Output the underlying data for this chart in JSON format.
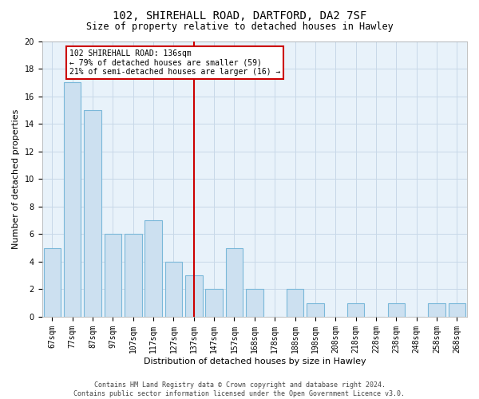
{
  "title": "102, SHIREHALL ROAD, DARTFORD, DA2 7SF",
  "subtitle": "Size of property relative to detached houses in Hawley",
  "xlabel": "Distribution of detached houses by size in Hawley",
  "ylabel": "Number of detached properties",
  "categories": [
    "67sqm",
    "77sqm",
    "87sqm",
    "97sqm",
    "107sqm",
    "117sqm",
    "127sqm",
    "137sqm",
    "147sqm",
    "157sqm",
    "168sqm",
    "178sqm",
    "188sqm",
    "198sqm",
    "208sqm",
    "218sqm",
    "228sqm",
    "238sqm",
    "248sqm",
    "258sqm",
    "268sqm"
  ],
  "values": [
    5,
    17,
    15,
    6,
    6,
    7,
    4,
    3,
    2,
    5,
    2,
    0,
    2,
    1,
    0,
    1,
    0,
    1,
    0,
    1,
    1
  ],
  "bar_color": "#cce0f0",
  "bar_edgecolor": "#7ab8d9",
  "grid_color": "#c8d8e8",
  "background_color": "#e8f2fa",
  "vline_x_index": 7,
  "vline_color": "#cc0000",
  "annotation_line1": "102 SHIREHALL ROAD: 136sqm",
  "annotation_line2": "← 79% of detached houses are smaller (59)",
  "annotation_line3": "21% of semi-detached houses are larger (16) →",
  "annotation_box_facecolor": "#ffffff",
  "annotation_box_edgecolor": "#cc0000",
  "footer_text": "Contains HM Land Registry data © Crown copyright and database right 2024.\nContains public sector information licensed under the Open Government Licence v3.0.",
  "ylim": [
    0,
    20
  ],
  "yticks": [
    0,
    2,
    4,
    6,
    8,
    10,
    12,
    14,
    16,
    18,
    20
  ],
  "title_fontsize": 10,
  "subtitle_fontsize": 8.5,
  "tick_fontsize": 7,
  "ylabel_fontsize": 8,
  "xlabel_fontsize": 8,
  "annotation_fontsize": 7,
  "footer_fontsize": 6
}
